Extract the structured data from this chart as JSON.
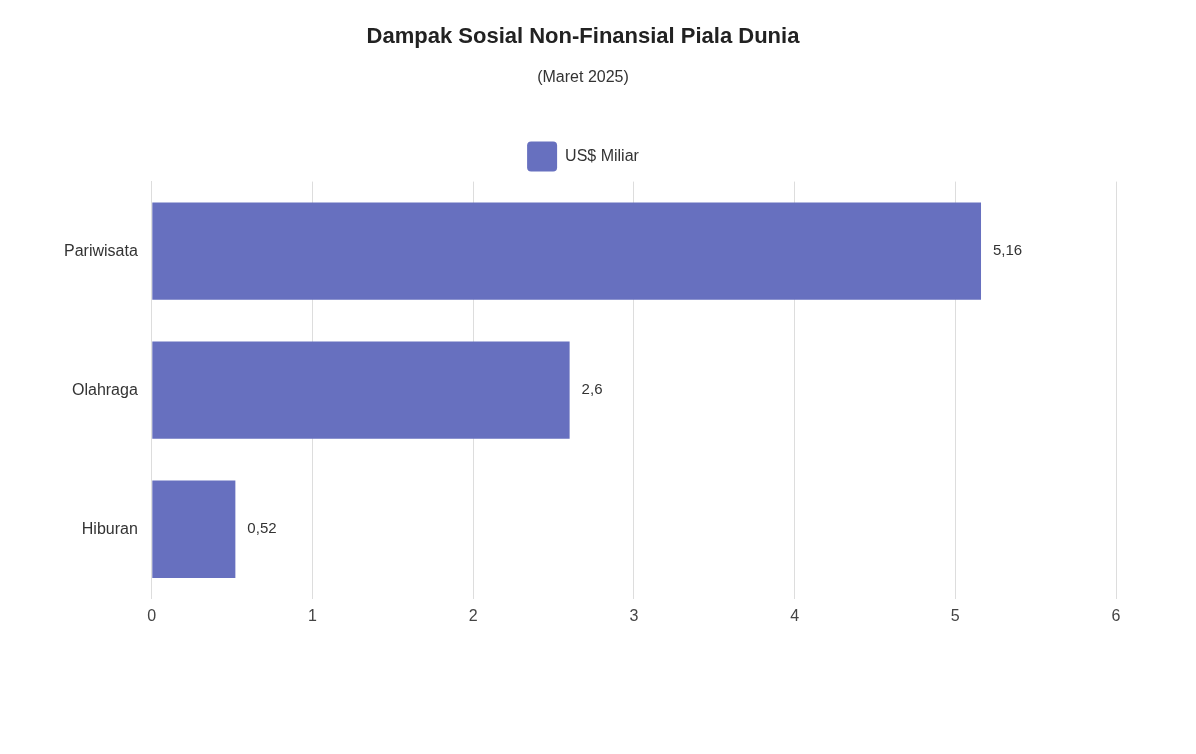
{
  "chart_data": {
    "type": "bar",
    "orientation": "horizontal",
    "title": "Dampak Sosial Non-Finansial Piala Dunia",
    "subtitle": "(Maret 2025)",
    "categories": [
      "Pariwisata",
      "Olahraga",
      "Hiburan"
    ],
    "series": [
      {
        "name": "US$ Miliar",
        "color": "#6770bf",
        "values": [
          5.16,
          2.6,
          0.52
        ],
        "value_labels": [
          "5,16",
          "2,6",
          "0,52"
        ]
      }
    ],
    "xlim": [
      0,
      6
    ],
    "xticks": [
      0,
      1,
      2,
      3,
      4,
      5,
      6
    ],
    "grid": "x",
    "legend": "top"
  }
}
